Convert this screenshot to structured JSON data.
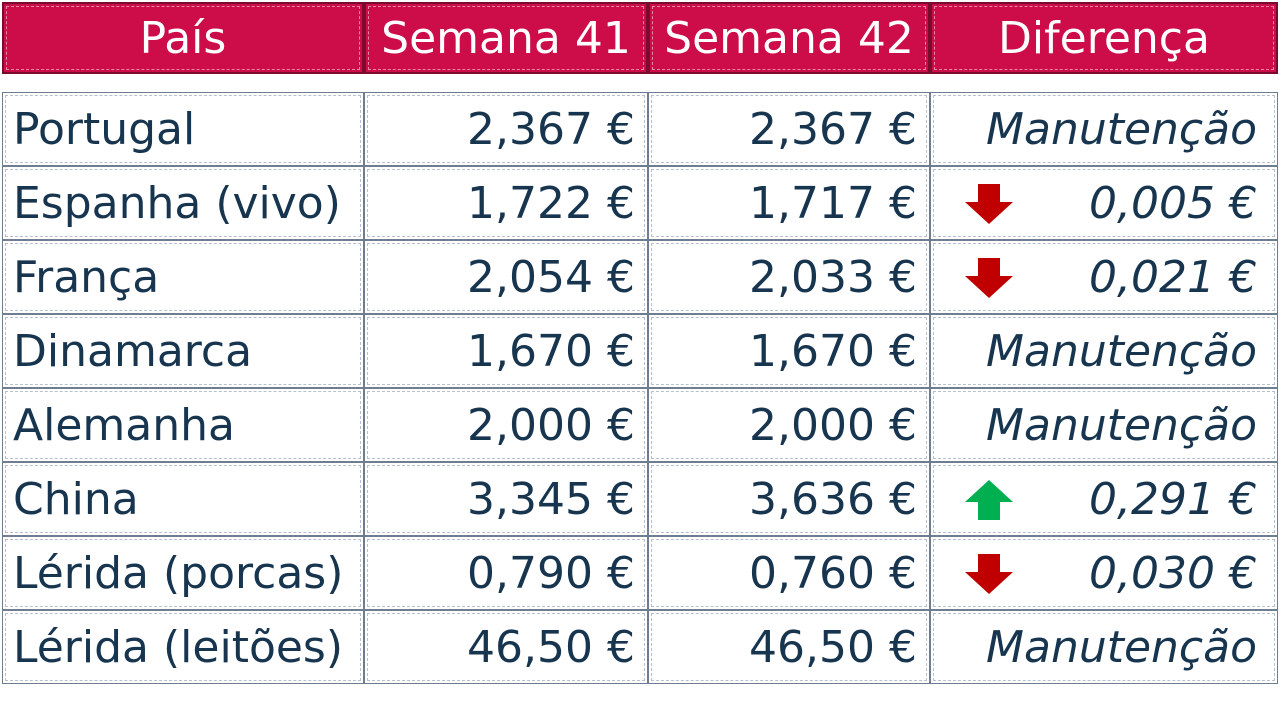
{
  "chart_data": {
    "type": "table",
    "columns": [
      "País",
      "Semana 41",
      "Semana 42",
      "Diferença"
    ],
    "rows": [
      {
        "country": "Portugal",
        "w41": "2,367 €",
        "w42": "2,367 €",
        "diff": "Manutenção",
        "trend": "none"
      },
      {
        "country": "Espanha (vivo)",
        "w41": "1,722 €",
        "w42": "1,717 €",
        "diff": "0,005 €",
        "trend": "down"
      },
      {
        "country": "França",
        "w41": "2,054 €",
        "w42": "2,033 €",
        "diff": "0,021 €",
        "trend": "down"
      },
      {
        "country": "Dinamarca",
        "w41": "1,670 €",
        "w42": "1,670 €",
        "diff": "Manutenção",
        "trend": "none"
      },
      {
        "country": "Alemanha",
        "w41": "2,000 €",
        "w42": "2,000 €",
        "diff": "Manutenção",
        "trend": "none"
      },
      {
        "country": "China",
        "w41": "3,345 €",
        "w42": "3,636 €",
        "diff": "0,291 €",
        "trend": "up"
      },
      {
        "country": "Lérida (porcas)",
        "w41": "0,790 €",
        "w42": "0,760 €",
        "diff": "0,030 €",
        "trend": "down"
      },
      {
        "country": "Lérida (leitões)",
        "w41": "46,50 €",
        "w42": "46,50 €",
        "diff": "Manutenção",
        "trend": "none"
      }
    ]
  },
  "colors": {
    "header_bg": "#cc0d4a",
    "header_text": "#ffffff",
    "body_text": "#17354f",
    "arrow_down": "#c00000",
    "arrow_up": "#00b050"
  },
  "icons": {
    "down": "arrow-down-icon",
    "up": "arrow-up-icon"
  }
}
